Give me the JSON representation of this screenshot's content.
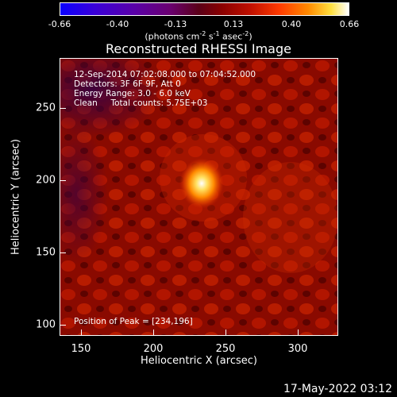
{
  "colorbar": {
    "ticks": [
      "-0.66",
      "-0.40",
      "-0.13",
      "0.13",
      "0.40",
      "0.66"
    ],
    "units": "(photons cm",
    "units_exp1": "-2",
    "units_mid": " s",
    "units_exp2": "-1",
    "units_mid2": " asec",
    "units_exp3": "-2",
    "units_end": ")"
  },
  "title": "Reconstructed RHESSI Image",
  "info": {
    "line1": "12-Sep-2014 07:02:08.000 to 07:04:52.000",
    "line2": "Detectors: 3F 6F 9F, Att 0",
    "line3": "Energy Range: 3.0 - 6.0 keV",
    "line4": "Clean     Total counts: 5.75E+03",
    "peak": "Position of Peak = [234,196]"
  },
  "axes": {
    "xlabel": "Heliocentric X (arcsec)",
    "ylabel": "Heliocentric Y (arcsec)",
    "xticks": [
      "150",
      "200",
      "250",
      "300"
    ],
    "yticks": [
      "100",
      "150",
      "200",
      "250"
    ]
  },
  "timestamp": "17-May-2022 03:12"
}
